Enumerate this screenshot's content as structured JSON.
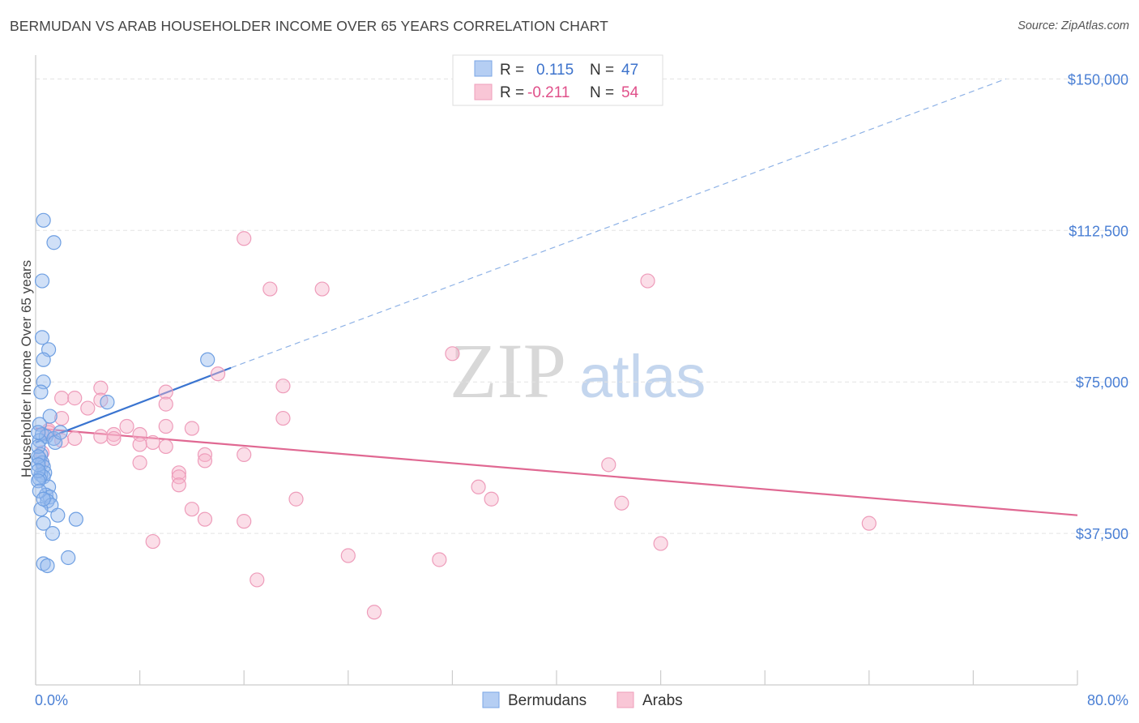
{
  "title": "BERMUDAN VS ARAB HOUSEHOLDER INCOME OVER 65 YEARS CORRELATION CHART",
  "source": "Source: ZipAtlas.com",
  "colors": {
    "blue": "#6b9fe6",
    "blue_line": "#3a74d0",
    "pink": "#f2a3bf",
    "pink_line": "#e06892",
    "tick_text": "#4a7fd4"
  },
  "legend": {
    "r_label": "R =",
    "n_label": "N =",
    "blue": {
      "r": "0.115",
      "n": "47"
    },
    "pink": {
      "r": "-0.211",
      "n": "54"
    }
  },
  "chart_data": {
    "type": "scatter",
    "ylabel": "Householder Income Over 65 years",
    "xlim": [
      0,
      80
    ],
    "ylim": [
      0,
      157500
    ],
    "x_tick_labels": [
      "0.0%",
      "80.0%"
    ],
    "y_ticks": [
      {
        "value": 37500,
        "label": "$37,500"
      },
      {
        "value": 75000,
        "label": "$75,000"
      },
      {
        "value": 112500,
        "label": "$112,500"
      },
      {
        "value": 150000,
        "label": "$150,000"
      }
    ],
    "grid": true,
    "legend_position": "top-center",
    "series": [
      {
        "name": "Bermudans",
        "color": "blue",
        "points": [
          [
            0.6,
            115000
          ],
          [
            1.4,
            109500
          ],
          [
            0.5,
            100000
          ],
          [
            0.5,
            86000
          ],
          [
            1.0,
            83000
          ],
          [
            0.6,
            80500
          ],
          [
            13.2,
            80500
          ],
          [
            0.6,
            75000
          ],
          [
            0.4,
            72500
          ],
          [
            1.1,
            66500
          ],
          [
            5.5,
            70000
          ],
          [
            0.3,
            64500
          ],
          [
            0.5,
            62000
          ],
          [
            0.8,
            61500
          ],
          [
            1.4,
            61000
          ],
          [
            0.3,
            60500
          ],
          [
            1.5,
            60000
          ],
          [
            0.4,
            57000
          ],
          [
            0.3,
            56000
          ],
          [
            0.5,
            55000
          ],
          [
            0.6,
            54000
          ],
          [
            0.7,
            52500
          ],
          [
            0.4,
            52000
          ],
          [
            0.6,
            51500
          ],
          [
            0.3,
            51000
          ],
          [
            1.0,
            49000
          ],
          [
            0.8,
            47000
          ],
          [
            1.1,
            46500
          ],
          [
            0.9,
            45500
          ],
          [
            1.2,
            44500
          ],
          [
            0.4,
            43500
          ],
          [
            1.7,
            42000
          ],
          [
            3.1,
            41000
          ],
          [
            0.6,
            40000
          ],
          [
            1.3,
            37500
          ],
          [
            2.5,
            31500
          ],
          [
            0.6,
            30000
          ],
          [
            0.9,
            29500
          ],
          [
            0.2,
            62500
          ],
          [
            0.2,
            59000
          ],
          [
            0.2,
            56500
          ],
          [
            0.2,
            54500
          ],
          [
            0.2,
            53000
          ],
          [
            0.2,
            50500
          ],
          [
            0.3,
            48000
          ],
          [
            0.6,
            46000
          ],
          [
            1.9,
            62500
          ]
        ]
      },
      {
        "name": "Arabs",
        "color": "pink",
        "points": [
          [
            16,
            110500
          ],
          [
            18,
            98000
          ],
          [
            22,
            98000
          ],
          [
            47,
            100000
          ],
          [
            32,
            82000
          ],
          [
            14,
            77000
          ],
          [
            19,
            74000
          ],
          [
            5,
            73500
          ],
          [
            10,
            72500
          ],
          [
            2,
            71000
          ],
          [
            3,
            71000
          ],
          [
            5,
            70500
          ],
          [
            10,
            69500
          ],
          [
            4,
            68500
          ],
          [
            19,
            66000
          ],
          [
            2,
            66000
          ],
          [
            7,
            64000
          ],
          [
            10,
            64000
          ],
          [
            12,
            63500
          ],
          [
            1,
            63000
          ],
          [
            6,
            62000
          ],
          [
            8,
            62000
          ],
          [
            5,
            61500
          ],
          [
            6,
            61000
          ],
          [
            9,
            60000
          ],
          [
            3,
            61000
          ],
          [
            8,
            59500
          ],
          [
            10,
            59000
          ],
          [
            13,
            57000
          ],
          [
            16,
            57000
          ],
          [
            13,
            55500
          ],
          [
            8,
            55000
          ],
          [
            44,
            54500
          ],
          [
            0.5,
            55000
          ],
          [
            11,
            52500
          ],
          [
            11,
            51500
          ],
          [
            11,
            49500
          ],
          [
            34,
            49000
          ],
          [
            20,
            46000
          ],
          [
            35,
            46000
          ],
          [
            45,
            45000
          ],
          [
            12,
            43500
          ],
          [
            13,
            41000
          ],
          [
            16,
            40500
          ],
          [
            64,
            40000
          ],
          [
            9,
            35500
          ],
          [
            48,
            35000
          ],
          [
            24,
            32000
          ],
          [
            31,
            31000
          ],
          [
            17,
            26000
          ],
          [
            26,
            18000
          ],
          [
            1,
            62500
          ],
          [
            2,
            60500
          ],
          [
            0.5,
            57500
          ]
        ]
      }
    ],
    "trend_lines": [
      {
        "series": "Bermudans",
        "solid": [
          [
            0,
            60000
          ],
          [
            15,
            78500
          ]
        ],
        "dashed": [
          [
            15,
            78500
          ],
          [
            74.5,
            150000
          ]
        ]
      },
      {
        "series": "Arabs",
        "solid": [
          [
            0,
            63500
          ],
          [
            80,
            42000
          ]
        ]
      }
    ]
  },
  "bottom_legend": [
    "Bermudans",
    "Arabs"
  ]
}
